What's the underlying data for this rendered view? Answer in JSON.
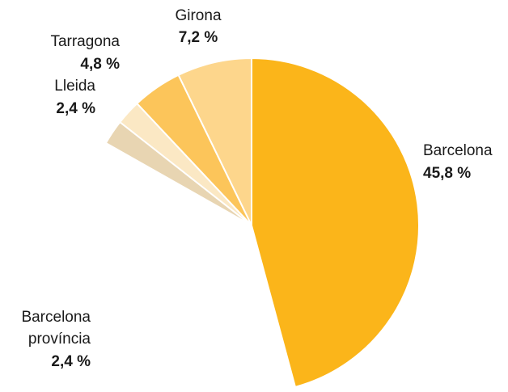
{
  "chart_data": {
    "type": "pie",
    "categories": [
      "Barcelona",
      "Barcelona província",
      "Lleida",
      "Tarragona",
      "Girona"
    ],
    "values": [
      45.8,
      2.4,
      2.4,
      4.8,
      7.2
    ],
    "value_labels": [
      "45,8 %",
      "2,4 %",
      "2,4 %",
      "4,8 %",
      "7,2 %"
    ],
    "colors": [
      "#fbb51a",
      "#e8d5b2",
      "#fbe8c4",
      "#fcc55a",
      "#fdd68c"
    ]
  }
}
